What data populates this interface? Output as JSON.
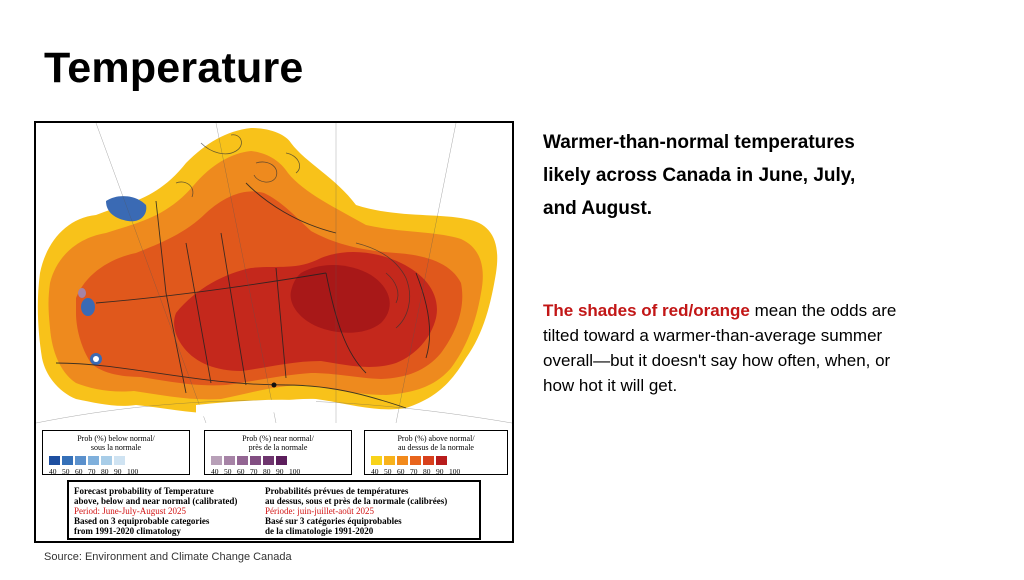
{
  "slide": {
    "title": "Temperature",
    "source": "Source: Environment and Climate Change Canada"
  },
  "headline": {
    "lines": [
      "Warmer-than-normal temperatures",
      "likely across Canada in June, July,",
      "and August."
    ]
  },
  "body": {
    "highlight": "The shades of red/orange",
    "line1_rest": " mean the odds are",
    "line2": "tilted toward a warmer-than-average summer",
    "line3": "overall—but it doesn't say how often, when, or",
    "line4": "how hot it will get."
  },
  "map": {
    "legends": [
      {
        "title": "Prob (%) below normal/\nsous la normale",
        "colors": [
          "#1e4fa0",
          "#3570b8",
          "#5a90cc",
          "#7fb0dc",
          "#a8cde8",
          "#cfe3f2"
        ],
        "numbers": [
          "40",
          "50",
          "60",
          "70",
          "80",
          "90",
          "100"
        ]
      },
      {
        "title": "Prob (%) near normal/\nprès de la normale",
        "colors": [
          "#b8a0b8",
          "#a683a6",
          "#936693",
          "#824e82",
          "#6e356e",
          "#5c1e5c"
        ],
        "numbers": [
          "40",
          "50",
          "60",
          "70",
          "80",
          "90",
          "100"
        ]
      },
      {
        "title": "Prob (%) above normal/\nau dessus de la normale",
        "colors": [
          "#f8d31a",
          "#f8b21a",
          "#f28a1c",
          "#e8641c",
          "#d8401c",
          "#b81c1c"
        ],
        "numbers": [
          "40",
          "50",
          "60",
          "70",
          "80",
          "90",
          "100"
        ]
      }
    ],
    "info_en": [
      "Forecast probability of Temperature",
      "above, below and near normal (calibrated)",
      "Period: June-July-August 2025",
      "Based on 3 equiprobable categories",
      " from 1991-2020 climatology"
    ],
    "info_fr": [
      "Probabilités prévues de températures",
      "au dessus, sous et près de la normale (calibrées)",
      "Période: juin-juillet-août 2025",
      "Basé sur 3 catégories équiprobables",
      "de la climatologie 1991-2020"
    ]
  },
  "colors": {
    "above_dark": "#b81c1c",
    "above_mid": "#e05a1c",
    "above_light": "#f8c21a",
    "below": "#3a6ab4",
    "highlight_text": "#c21616"
  }
}
